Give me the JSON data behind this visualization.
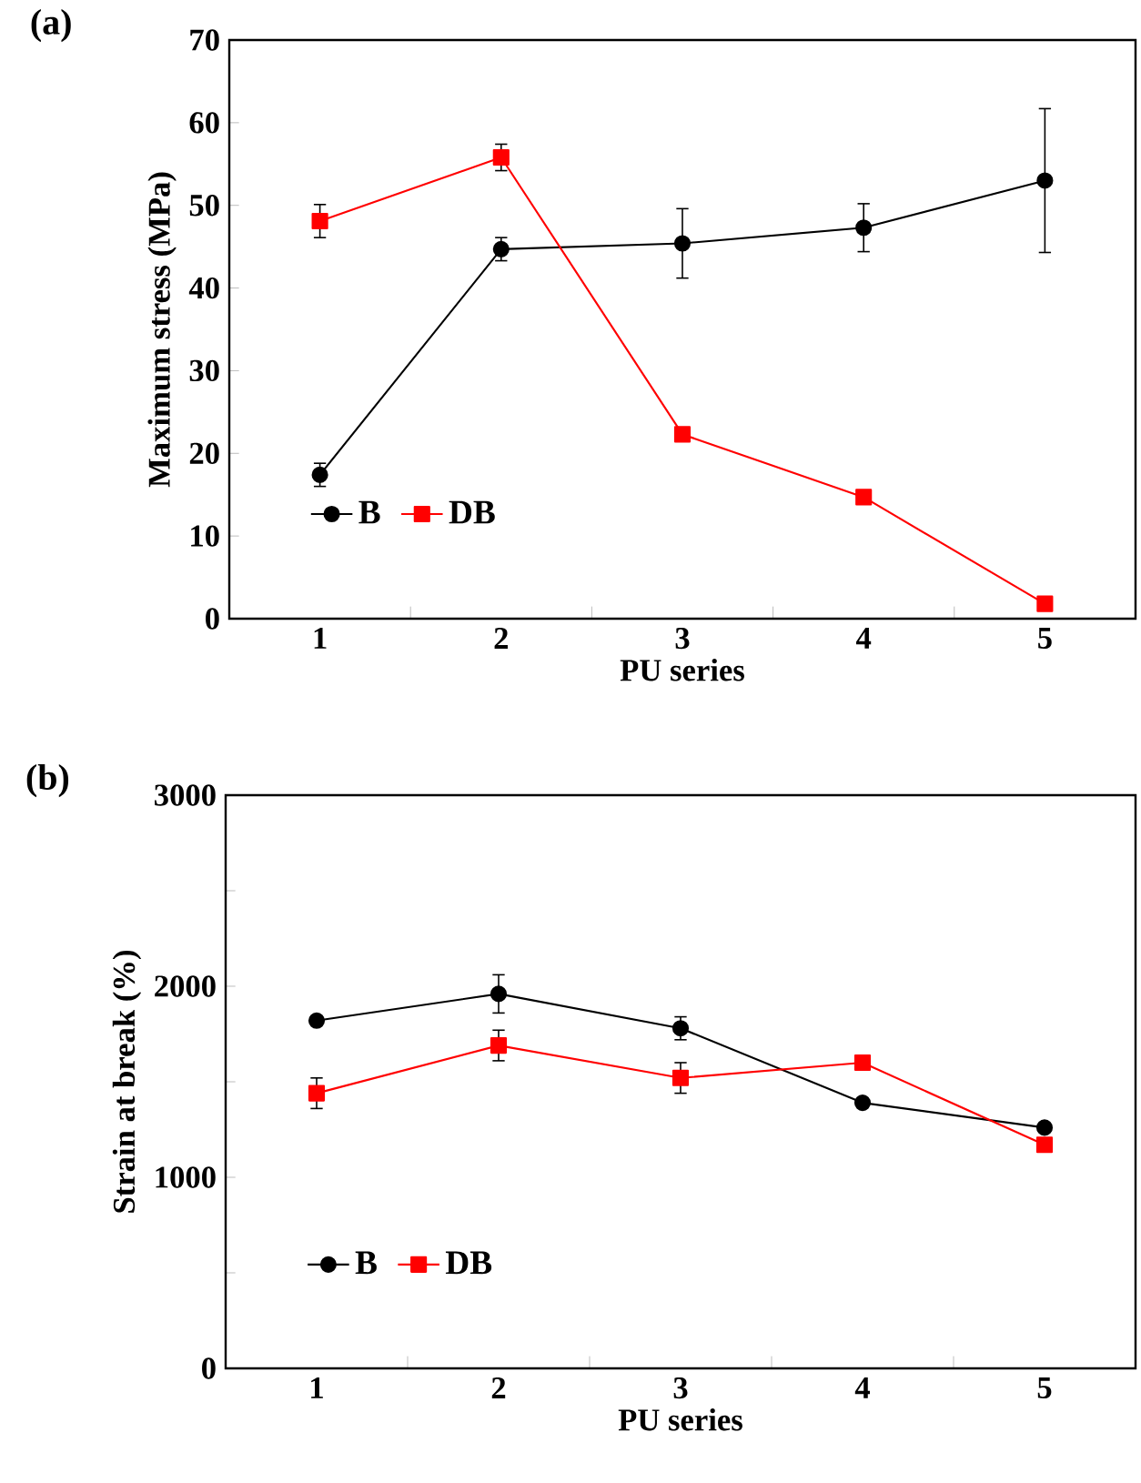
{
  "chart_data": [
    {
      "type": "line",
      "title": "(a)",
      "xlabel": "PU series",
      "ylabel": "Maximum  stress (MPa)",
      "categories": [
        "1",
        "2",
        "3",
        "4",
        "5"
      ],
      "ylim": [
        0,
        70
      ],
      "yticks": [
        0,
        10,
        20,
        30,
        40,
        50,
        60,
        70
      ],
      "legend": "bottom left",
      "grid": false,
      "series": [
        {
          "name": "B",
          "color": "#000000",
          "marker": "circle",
          "values": [
            17.4,
            44.7,
            45.4,
            47.3,
            53.0
          ],
          "errors": [
            1.4,
            1.4,
            4.2,
            2.9,
            8.7
          ]
        },
        {
          "name": "DB",
          "color": "#ff0000",
          "marker": "square",
          "values": [
            48.1,
            55.8,
            22.3,
            14.7,
            1.8
          ],
          "errors": [
            2.0,
            1.6,
            null,
            null,
            null
          ]
        }
      ]
    },
    {
      "type": "line",
      "title": "(b)",
      "xlabel": "PU series",
      "ylabel": "Strain at break (%)",
      "categories": [
        "1",
        "2",
        "3",
        "4",
        "5"
      ],
      "ylim": [
        0,
        3000
      ],
      "yticks": [
        0,
        {
          "value": 500,
          "label": null
        },
        1000,
        {
          "value": 1500,
          "label": null
        },
        2000,
        {
          "value": 2500,
          "label": null
        },
        3000
      ],
      "legend": "bottom left",
      "grid": false,
      "series": [
        {
          "name": "B",
          "color": "#000000",
          "marker": "circle",
          "values": [
            1820,
            1960,
            1780,
            1390,
            1260
          ],
          "errors": [
            null,
            100,
            60,
            null,
            null
          ]
        },
        {
          "name": "DB",
          "color": "#ff0000",
          "marker": "square",
          "values": [
            1440,
            1690,
            1520,
            1600,
            1170
          ],
          "errors": [
            80,
            80,
            80,
            null,
            null
          ]
        }
      ]
    }
  ]
}
